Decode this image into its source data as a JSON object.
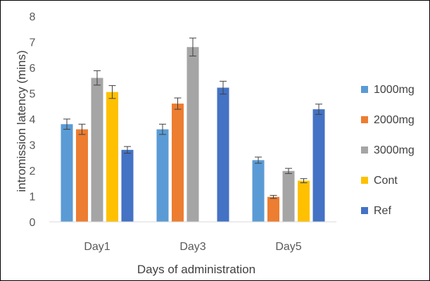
{
  "chart_data": {
    "type": "bar",
    "title": "",
    "xlabel": "Days of administration",
    "ylabel": "intromission latency (mins)",
    "ylim": [
      0,
      8
    ],
    "yticks": [
      0,
      1,
      2,
      3,
      4,
      5,
      6,
      7,
      8
    ],
    "grid": false,
    "legend_position": "right",
    "categories": [
      "Day1",
      "Day3",
      "Day5"
    ],
    "series": [
      {
        "name": "1000mg",
        "color": "#5b9bd5",
        "values": [
          3.8,
          3.6,
          2.4
        ],
        "errors": [
          0.2,
          0.2,
          0.12
        ]
      },
      {
        "name": "2000mg",
        "color": "#ed7d31",
        "values": [
          3.6,
          4.6,
          0.97
        ],
        "errors": [
          0.2,
          0.22,
          0.06
        ]
      },
      {
        "name": "3000mg",
        "color": "#a5a5a5",
        "values": [
          5.6,
          6.8,
          1.98
        ],
        "errors": [
          0.28,
          0.35,
          0.1
        ]
      },
      {
        "name": "Cont",
        "color": "#ffc000",
        "values": [
          5.05,
          null,
          1.6
        ],
        "errors": [
          0.25,
          null,
          0.08
        ]
      },
      {
        "name": "Ref",
        "color": "#4472c4",
        "values": [
          2.8,
          5.22,
          4.38
        ],
        "errors": [
          0.13,
          0.25,
          0.2
        ]
      }
    ]
  }
}
